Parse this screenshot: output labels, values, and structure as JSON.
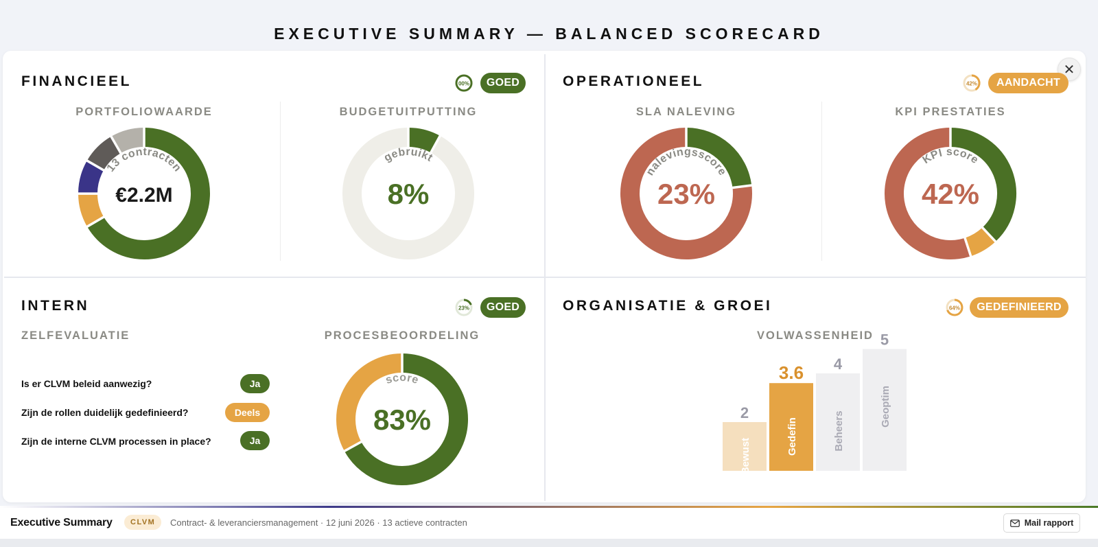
{
  "page_title": "EXECUTIVE SUMMARY — BALANCED SCORECARD",
  "colors": {
    "green": "#4a7025",
    "orange": "#e5a444",
    "red": "#bd6751",
    "navy": "#3a3488",
    "dark_gray": "#5f5b58",
    "light_gray": "#b4b1aa",
    "track": "#efeee8"
  },
  "financieel": {
    "title": "FINANCIEEL",
    "mini_label": "00%",
    "status": "GOED",
    "portfolio": {
      "label": "PORTFOLIOWAARDE",
      "arc_text": "13 contracten",
      "value": "€2.2M",
      "segments": [
        {
          "name": "green",
          "value": 61.5
        },
        {
          "name": "orange",
          "value": 7.7
        },
        {
          "name": "navy",
          "value": 7.7
        },
        {
          "name": "dark-gray",
          "value": 7.7
        },
        {
          "name": "light-gray",
          "value": 7.7
        }
      ]
    },
    "budget": {
      "label": "BUDGETUITPUTTING",
      "arc_text": "gebruikt",
      "value": "8%",
      "percent": 8
    }
  },
  "operationeel": {
    "title": "OPERATIONEEL",
    "mini_label": "42%",
    "status": "AANDACHT",
    "sla": {
      "label": "SLA NALEVING",
      "arc_text": "nalevingsscore",
      "value": "23%",
      "percent": 23
    },
    "kpi": {
      "label": "KPI PRESTATIES",
      "arc_text": "KPI score",
      "value": "42%",
      "segments": [
        {
          "name": "green",
          "value": 38
        },
        {
          "name": "orange",
          "value": 7
        },
        {
          "name": "red",
          "value": 55
        }
      ]
    }
  },
  "intern": {
    "title": "INTERN",
    "mini_label": "23%",
    "status": "GOED",
    "zelfevaluatie": {
      "label": "ZELFEVALUATIE",
      "questions": [
        {
          "q": "Is er CLVM beleid aanwezig?",
          "a": "Ja"
        },
        {
          "q": "Zijn de rollen duidelijk gedefinieerd?",
          "a": "Deels"
        },
        {
          "q": "Zijn de interne CLVM processen in place?",
          "a": "Ja"
        }
      ]
    },
    "proces": {
      "label": "PROCESBEOORDELING",
      "arc_text": "score",
      "value": "83%",
      "segments": [
        {
          "name": "green",
          "value": 67
        },
        {
          "name": "orange",
          "value": 33
        }
      ]
    }
  },
  "organisatie": {
    "title": "ORGANISATIE & GROEI",
    "mini_label": "64%",
    "status": "GEDEFINIEERD",
    "volwassenheid": {
      "label": "VOLWASSENHEID",
      "current_value": "3.6",
      "bars": [
        {
          "level": "2",
          "name": "Bewust"
        },
        {
          "level": "3.6",
          "name": "Gedefin"
        },
        {
          "level": "4",
          "name": "Beheers"
        },
        {
          "level": "5",
          "name": "Geoptim"
        }
      ]
    }
  },
  "footer": {
    "title": "Executive Summary",
    "badge": "CLVM",
    "meta": "Contract- & leveranciersmanagement · 12 juni 2026 · 13 actieve contracten",
    "mail_label": "Mail rapport"
  }
}
